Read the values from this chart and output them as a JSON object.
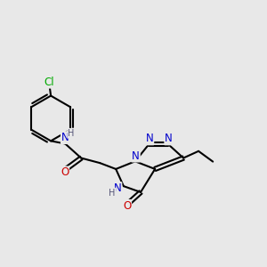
{
  "background_color": "#e8e8e8",
  "bond_color": "#000000",
  "bond_width": 1.5,
  "atom_colors": {
    "C": "#000000",
    "N": "#0000cc",
    "O": "#cc0000",
    "Cl": "#00aa00",
    "H": "#555577"
  },
  "font_size": 8.5
}
